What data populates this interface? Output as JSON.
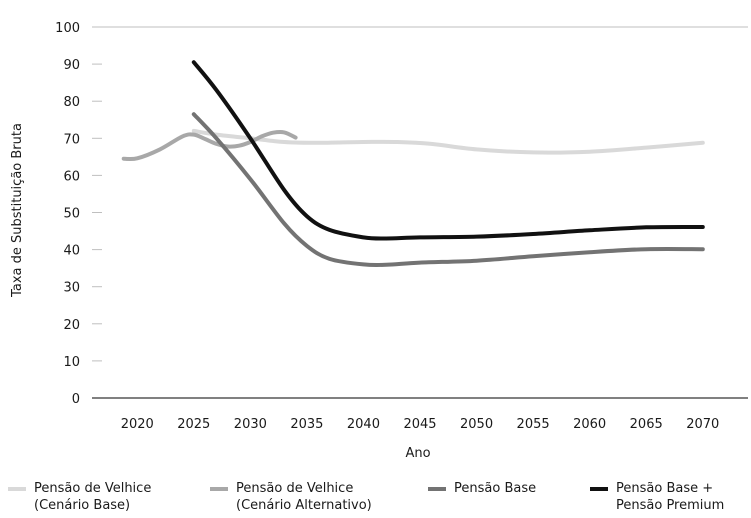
{
  "chart_data": {
    "type": "line",
    "title": "",
    "xlabel": "Ano",
    "ylabel": "Taxa de Substituição Bruta",
    "xlim": [
      2016,
      2074
    ],
    "ylim": [
      0,
      100
    ],
    "x_ticks": [
      "2020",
      "2025",
      "2030",
      "2035",
      "2040",
      "2045",
      "2050",
      "2055",
      "2060",
      "2065",
      "2070"
    ],
    "y_ticks": [
      "0",
      "10",
      "20",
      "30",
      "40",
      "50",
      "60",
      "70",
      "80",
      "90",
      "100"
    ],
    "grid": false,
    "legend_position": "bottom",
    "series": [
      {
        "name": "Pensão de Velhice\n(Cenário Base)",
        "color": "#d9d9d9",
        "x": [
          2025,
          2027,
          2030,
          2033,
          2036,
          2040,
          2043,
          2046,
          2050,
          2055,
          2060,
          2065,
          2070
        ],
        "y": [
          72,
          71,
          70,
          69,
          68.8,
          69,
          69,
          68.5,
          67,
          66.2,
          66.4,
          67.5,
          68.8
        ]
      },
      {
        "name": "Pensão de Velhice\n(Cenário Alternativo)",
        "color": "#a8a8a8",
        "x": [
          2018.8,
          2020,
          2022,
          2024,
          2025,
          2026,
          2027,
          2028,
          2029,
          2030,
          2031,
          2032,
          2033,
          2034
        ],
        "y": [
          64.5,
          64.6,
          67,
          70.5,
          71,
          69.8,
          68.5,
          67.8,
          68,
          69,
          70.5,
          71.5,
          71.6,
          70.2
        ]
      },
      {
        "name": "Pensão Base",
        "color": "#737373",
        "x": [
          2025,
          2027,
          2030,
          2033,
          2035,
          2037,
          2040,
          2042,
          2045,
          2050,
          2055,
          2060,
          2065,
          2070
        ],
        "y": [
          76.5,
          70,
          59,
          47,
          41,
          37.5,
          36,
          35.9,
          36.5,
          37,
          38.2,
          39.3,
          40.1,
          40.1
        ]
      },
      {
        "name": "Pensão Base +\nPensão Premium",
        "color": "#111111",
        "x": [
          2025,
          2027,
          2030,
          2033,
          2035,
          2037,
          2040,
          2042,
          2045,
          2050,
          2055,
          2060,
          2065,
          2070
        ],
        "y": [
          90.5,
          83,
          70,
          56,
          49,
          45.3,
          43.3,
          43,
          43.3,
          43.5,
          44.2,
          45.2,
          46,
          46.1
        ]
      }
    ]
  }
}
